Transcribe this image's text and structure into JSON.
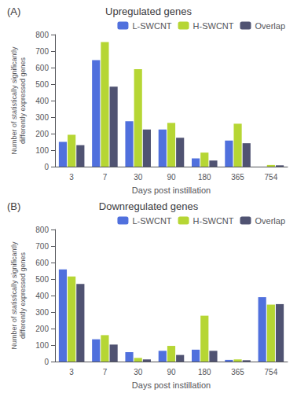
{
  "chart_data": [
    {
      "type": "bar",
      "title": "Upregulated genes",
      "annotations": [
        "(A)"
      ],
      "categories": [
        "3",
        "7",
        "30",
        "90",
        "180",
        "365",
        "754"
      ],
      "series": [
        {
          "name": "L-SWCNT",
          "values": [
            150,
            645,
            275,
            225,
            50,
            158,
            0
          ]
        },
        {
          "name": "H-SWCNT",
          "values": [
            193,
            755,
            590,
            265,
            85,
            260,
            10
          ]
        },
        {
          "name": "Overlap",
          "values": [
            130,
            485,
            225,
            175,
            37,
            142,
            8
          ]
        }
      ],
      "xlabel": "Days post instillation",
      "ylabel": "Number of statistically significantly\ndifferently expressed genes",
      "ylim": [
        0,
        800
      ],
      "yticks": [
        0,
        100,
        200,
        300,
        400,
        500,
        600,
        700,
        800
      ],
      "legend": "upper right",
      "grid": false
    },
    {
      "type": "bar",
      "title": "Downregulated genes",
      "annotations": [
        "(B)"
      ],
      "categories": [
        "3",
        "7",
        "30",
        "90",
        "180",
        "365",
        "754"
      ],
      "series": [
        {
          "name": "L-SWCNT",
          "values": [
            558,
            135,
            57,
            65,
            72,
            10,
            390
          ]
        },
        {
          "name": "H-SWCNT",
          "values": [
            515,
            160,
            22,
            95,
            278,
            13,
            345
          ]
        },
        {
          "name": "Overlap",
          "values": [
            470,
            103,
            13,
            40,
            65,
            8,
            348
          ]
        }
      ],
      "xlabel": "Days post instillation",
      "ylabel": "Number of statistically significantly\ndifferently expressed genes",
      "ylim": [
        0,
        800
      ],
      "yticks": [
        0,
        100,
        200,
        300,
        400,
        500,
        600,
        700,
        800
      ],
      "legend": "upper right",
      "grid": false
    }
  ]
}
